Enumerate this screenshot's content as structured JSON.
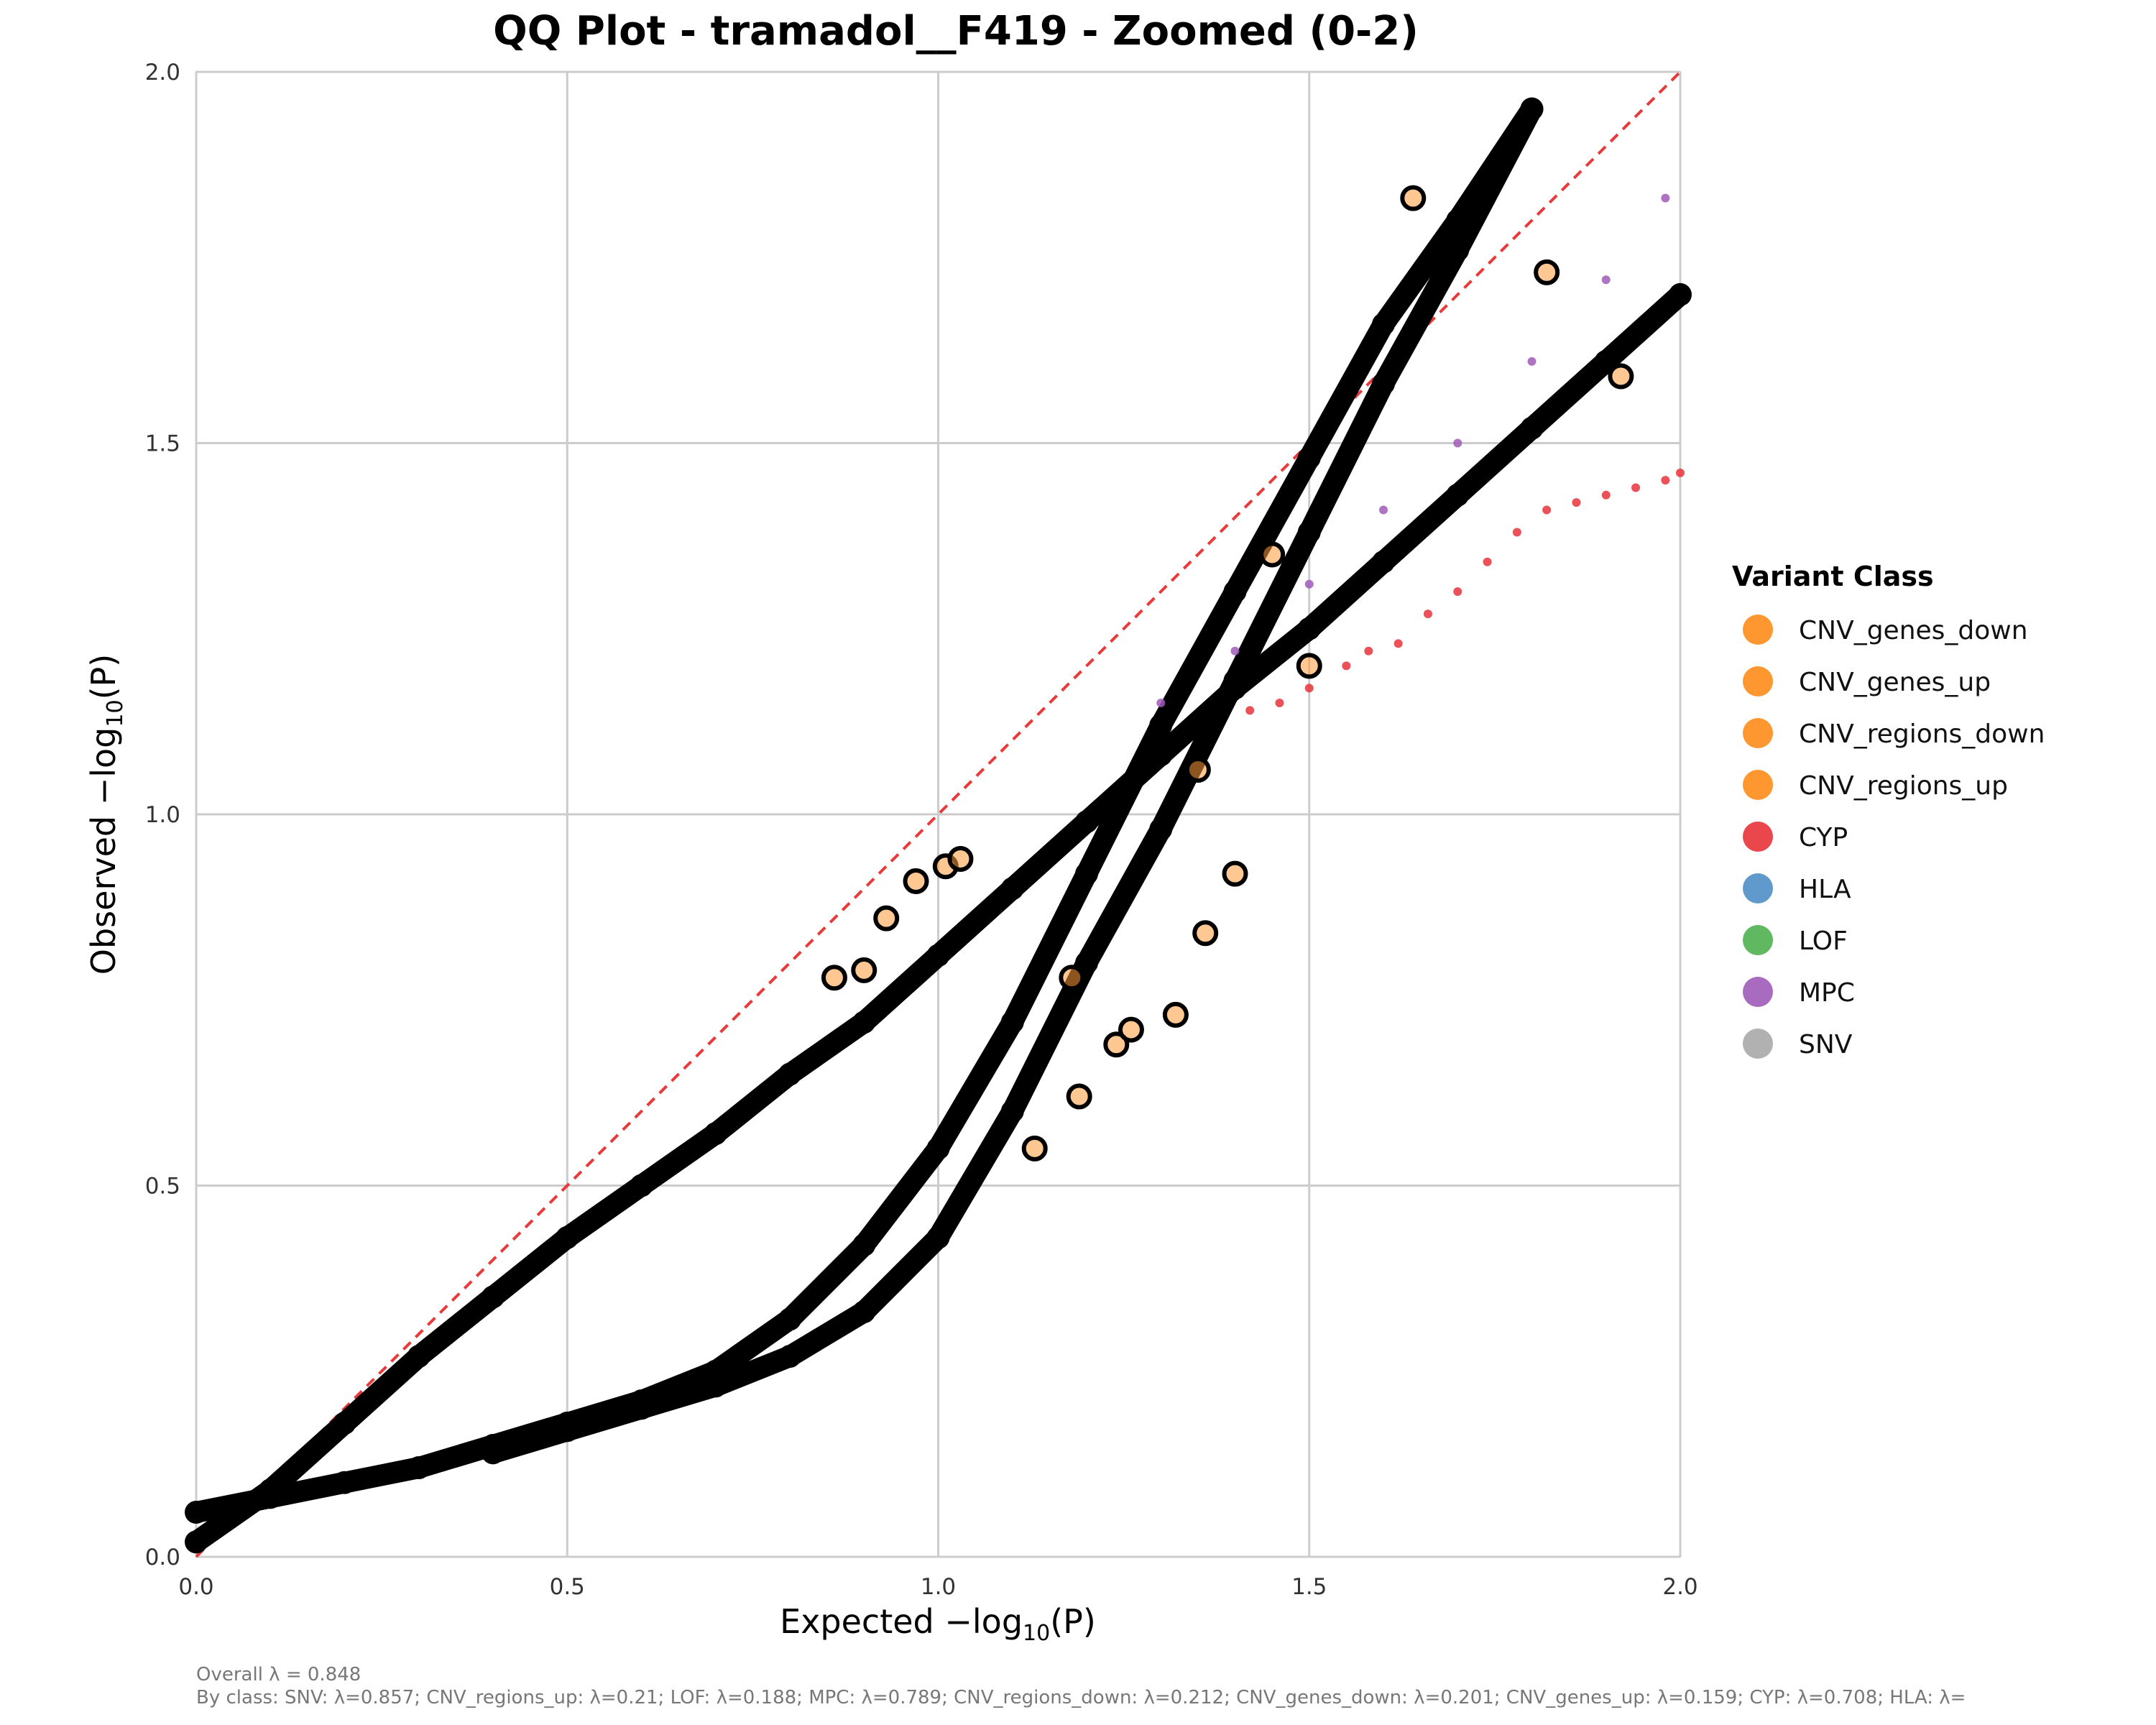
{
  "chart_data": {
    "type": "scatter",
    "title": "QQ Plot - tramadol__F419 - Zoomed (0-2)",
    "xlabel_prefix": "Expected −log",
    "xlabel_sub": "10",
    "xlabel_suffix": "(P)",
    "ylabel_prefix": "Observed −log",
    "ylabel_sub": "10",
    "ylabel_suffix": "(P)",
    "xlim": [
      0,
      2
    ],
    "ylim": [
      0,
      2
    ],
    "xticks": [
      "0.0",
      "0.5",
      "1.0",
      "1.5",
      "2.0"
    ],
    "yticks": [
      "0.0",
      "0.5",
      "1.0",
      "1.5",
      "2.0"
    ],
    "grid": true,
    "reference_line": {
      "style": "dashed",
      "color": "#e83a3a",
      "from": [
        0,
        0
      ],
      "to": [
        2,
        2
      ]
    },
    "legend": {
      "title": "Variant Class",
      "placement": "right",
      "entries": [
        {
          "name": "CNV_genes_down",
          "color": "#ff8c1a"
        },
        {
          "name": "CNV_genes_up",
          "color": "#ff8c1a"
        },
        {
          "name": "CNV_regions_down",
          "color": "#ff8c1a"
        },
        {
          "name": "CNV_regions_up",
          "color": "#ff8c1a"
        },
        {
          "name": "CYP",
          "color": "#e8333a"
        },
        {
          "name": "HLA",
          "color": "#4f8fc7"
        },
        {
          "name": "LOF",
          "color": "#4fb04f"
        },
        {
          "name": "MPC",
          "color": "#a05bb8"
        },
        {
          "name": "SNV",
          "color": "#a8a8a8"
        }
      ]
    },
    "series": [
      {
        "class": "SNV",
        "color": "#000000",
        "style": "band",
        "x": [
          0,
          0.1,
          0.2,
          0.3,
          0.4,
          0.5,
          0.6,
          0.7,
          0.8,
          0.9,
          1.0,
          1.1,
          1.2,
          1.3,
          1.4,
          1.5,
          1.6,
          1.7,
          1.8,
          1.9,
          2.0
        ],
        "y": [
          0.02,
          0.09,
          0.18,
          0.27,
          0.35,
          0.43,
          0.5,
          0.57,
          0.65,
          0.72,
          0.81,
          0.9,
          0.99,
          1.08,
          1.17,
          1.25,
          1.34,
          1.43,
          1.52,
          1.61,
          1.7
        ]
      },
      {
        "class": "CNV",
        "color": "#000000",
        "style": "band",
        "x": [
          0,
          0.1,
          0.2,
          0.3,
          0.4,
          0.5,
          0.6,
          0.7,
          0.8,
          0.9,
          1.0,
          1.1,
          1.2,
          1.3,
          1.4,
          1.5,
          1.6,
          1.7,
          1.8
        ],
        "y": [
          0.06,
          0.08,
          0.1,
          0.12,
          0.15,
          0.18,
          0.21,
          0.25,
          0.32,
          0.42,
          0.55,
          0.72,
          0.92,
          1.12,
          1.3,
          1.48,
          1.66,
          1.8,
          1.95
        ]
      },
      {
        "class": "CNV_up",
        "color": "#000000",
        "style": "band",
        "x": [
          0.4,
          0.5,
          0.6,
          0.7,
          0.8,
          0.9,
          1.0,
          1.1,
          1.2,
          1.3,
          1.4,
          1.5,
          1.6,
          1.7,
          1.8
        ],
        "y": [
          0.14,
          0.17,
          0.2,
          0.23,
          0.27,
          0.33,
          0.43,
          0.6,
          0.8,
          0.98,
          1.18,
          1.38,
          1.58,
          1.76,
          1.95
        ]
      },
      {
        "class": "CYP",
        "color": "#e8333a",
        "style": "points",
        "x": [
          1.42,
          1.46,
          1.5,
          1.55,
          1.58,
          1.62,
          1.66,
          1.7,
          1.74,
          1.78,
          1.82,
          1.86,
          1.9,
          1.94,
          1.98,
          2.0
        ],
        "y": [
          1.14,
          1.15,
          1.17,
          1.2,
          1.22,
          1.23,
          1.27,
          1.3,
          1.34,
          1.38,
          1.41,
          1.42,
          1.43,
          1.44,
          1.45,
          1.46
        ]
      },
      {
        "class": "MPC",
        "color": "#a05bb8",
        "style": "points",
        "x": [
          1.3,
          1.4,
          1.5,
          1.6,
          1.7,
          1.8,
          1.9,
          1.98
        ],
        "y": [
          1.15,
          1.22,
          1.31,
          1.41,
          1.5,
          1.61,
          1.72,
          1.83
        ]
      },
      {
        "class": "outlier",
        "color": "#000000",
        "style": "rings",
        "x": [
          0.86,
          0.9,
          0.93,
          0.97,
          1.01,
          1.03,
          1.13,
          1.18,
          1.19,
          1.24,
          1.26,
          1.32,
          1.35,
          1.36,
          1.4,
          1.45,
          1.5,
          1.64,
          1.82,
          1.92
        ],
        "y": [
          0.78,
          0.79,
          0.86,
          0.91,
          0.93,
          0.94,
          0.55,
          0.78,
          0.62,
          0.69,
          0.71,
          0.73,
          1.06,
          0.84,
          0.92,
          1.35,
          1.2,
          1.83,
          1.73,
          1.59
        ]
      }
    ],
    "footnote_line1": "Overall λ = 0.848",
    "footnote_line2": "By class: SNV: λ=0.857; CNV_regions_up: λ=0.21; LOF: λ=0.188; MPC: λ=0.789; CNV_regions_down: λ=0.212; CNV_genes_down: λ=0.201; CNV_genes_up: λ=0.159; CYP: λ=0.708; HLA: λ="
  }
}
